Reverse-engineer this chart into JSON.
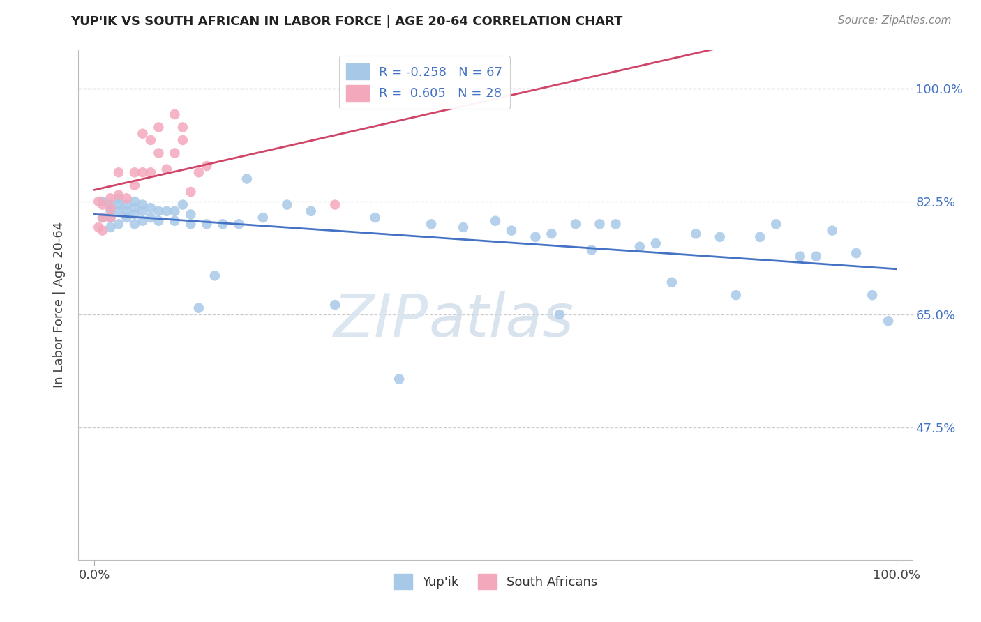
{
  "title": "YUP'IK VS SOUTH AFRICAN IN LABOR FORCE | AGE 20-64 CORRELATION CHART",
  "source": "Source: ZipAtlas.com",
  "ylabel": "In Labor Force | Age 20-64",
  "legend_label_yupik": "Yup'ik",
  "legend_label_sa": "South Africans",
  "r_yupik": -0.258,
  "n_yupik": 67,
  "r_sa": 0.605,
  "n_sa": 28,
  "xlim": [
    -0.02,
    1.02
  ],
  "ylim": [
    0.27,
    1.06
  ],
  "ytick_values": [
    0.475,
    0.65,
    0.825,
    1.0
  ],
  "ytick_labels": [
    "47.5%",
    "65.0%",
    "82.5%",
    "100.0%"
  ],
  "xtick_values": [
    0.0,
    1.0
  ],
  "xtick_labels": [
    "0.0%",
    "100.0%"
  ],
  "blue_scatter": "#a8c8e8",
  "pink_scatter": "#f4a8bc",
  "blue_line": "#4472c4",
  "pink_line": "#d04468",
  "bg_color": "#ffffff",
  "grid_color": "#cccccc",
  "title_color": "#222222",
  "source_color": "#888888",
  "ylabel_color": "#444444",
  "tick_label_color_blue": "#4472c4",
  "tick_label_color_x": "#444444",
  "yupik_x": [
    0.01,
    0.01,
    0.02,
    0.02,
    0.02,
    0.02,
    0.03,
    0.03,
    0.03,
    0.03,
    0.04,
    0.04,
    0.04,
    0.05,
    0.05,
    0.05,
    0.05,
    0.06,
    0.06,
    0.06,
    0.07,
    0.07,
    0.08,
    0.08,
    0.09,
    0.1,
    0.1,
    0.11,
    0.12,
    0.12,
    0.13,
    0.14,
    0.15,
    0.16,
    0.18,
    0.19,
    0.21,
    0.24,
    0.27,
    0.3,
    0.35,
    0.38,
    0.42,
    0.46,
    0.5,
    0.52,
    0.55,
    0.57,
    0.58,
    0.6,
    0.62,
    0.63,
    0.65,
    0.68,
    0.7,
    0.72,
    0.75,
    0.78,
    0.8,
    0.83,
    0.85,
    0.88,
    0.9,
    0.92,
    0.95,
    0.97,
    0.99
  ],
  "yupik_y": [
    0.825,
    0.8,
    0.82,
    0.81,
    0.8,
    0.785,
    0.83,
    0.82,
    0.81,
    0.79,
    0.82,
    0.81,
    0.8,
    0.825,
    0.815,
    0.805,
    0.79,
    0.82,
    0.81,
    0.795,
    0.815,
    0.8,
    0.81,
    0.795,
    0.81,
    0.81,
    0.795,
    0.82,
    0.805,
    0.79,
    0.66,
    0.79,
    0.71,
    0.79,
    0.79,
    0.86,
    0.8,
    0.82,
    0.81,
    0.665,
    0.8,
    0.55,
    0.79,
    0.785,
    0.795,
    0.78,
    0.77,
    0.775,
    0.65,
    0.79,
    0.75,
    0.79,
    0.79,
    0.755,
    0.76,
    0.7,
    0.775,
    0.77,
    0.68,
    0.77,
    0.79,
    0.74,
    0.74,
    0.78,
    0.745,
    0.68,
    0.64
  ],
  "sa_x": [
    0.005,
    0.005,
    0.01,
    0.01,
    0.01,
    0.02,
    0.02,
    0.02,
    0.03,
    0.03,
    0.04,
    0.05,
    0.05,
    0.06,
    0.06,
    0.07,
    0.07,
    0.08,
    0.08,
    0.09,
    0.1,
    0.1,
    0.11,
    0.11,
    0.12,
    0.13,
    0.14,
    0.3
  ],
  "sa_y": [
    0.825,
    0.785,
    0.82,
    0.8,
    0.78,
    0.83,
    0.815,
    0.8,
    0.87,
    0.835,
    0.83,
    0.87,
    0.85,
    0.93,
    0.87,
    0.92,
    0.87,
    0.94,
    0.9,
    0.875,
    0.96,
    0.9,
    0.94,
    0.92,
    0.84,
    0.87,
    0.88,
    0.82
  ]
}
